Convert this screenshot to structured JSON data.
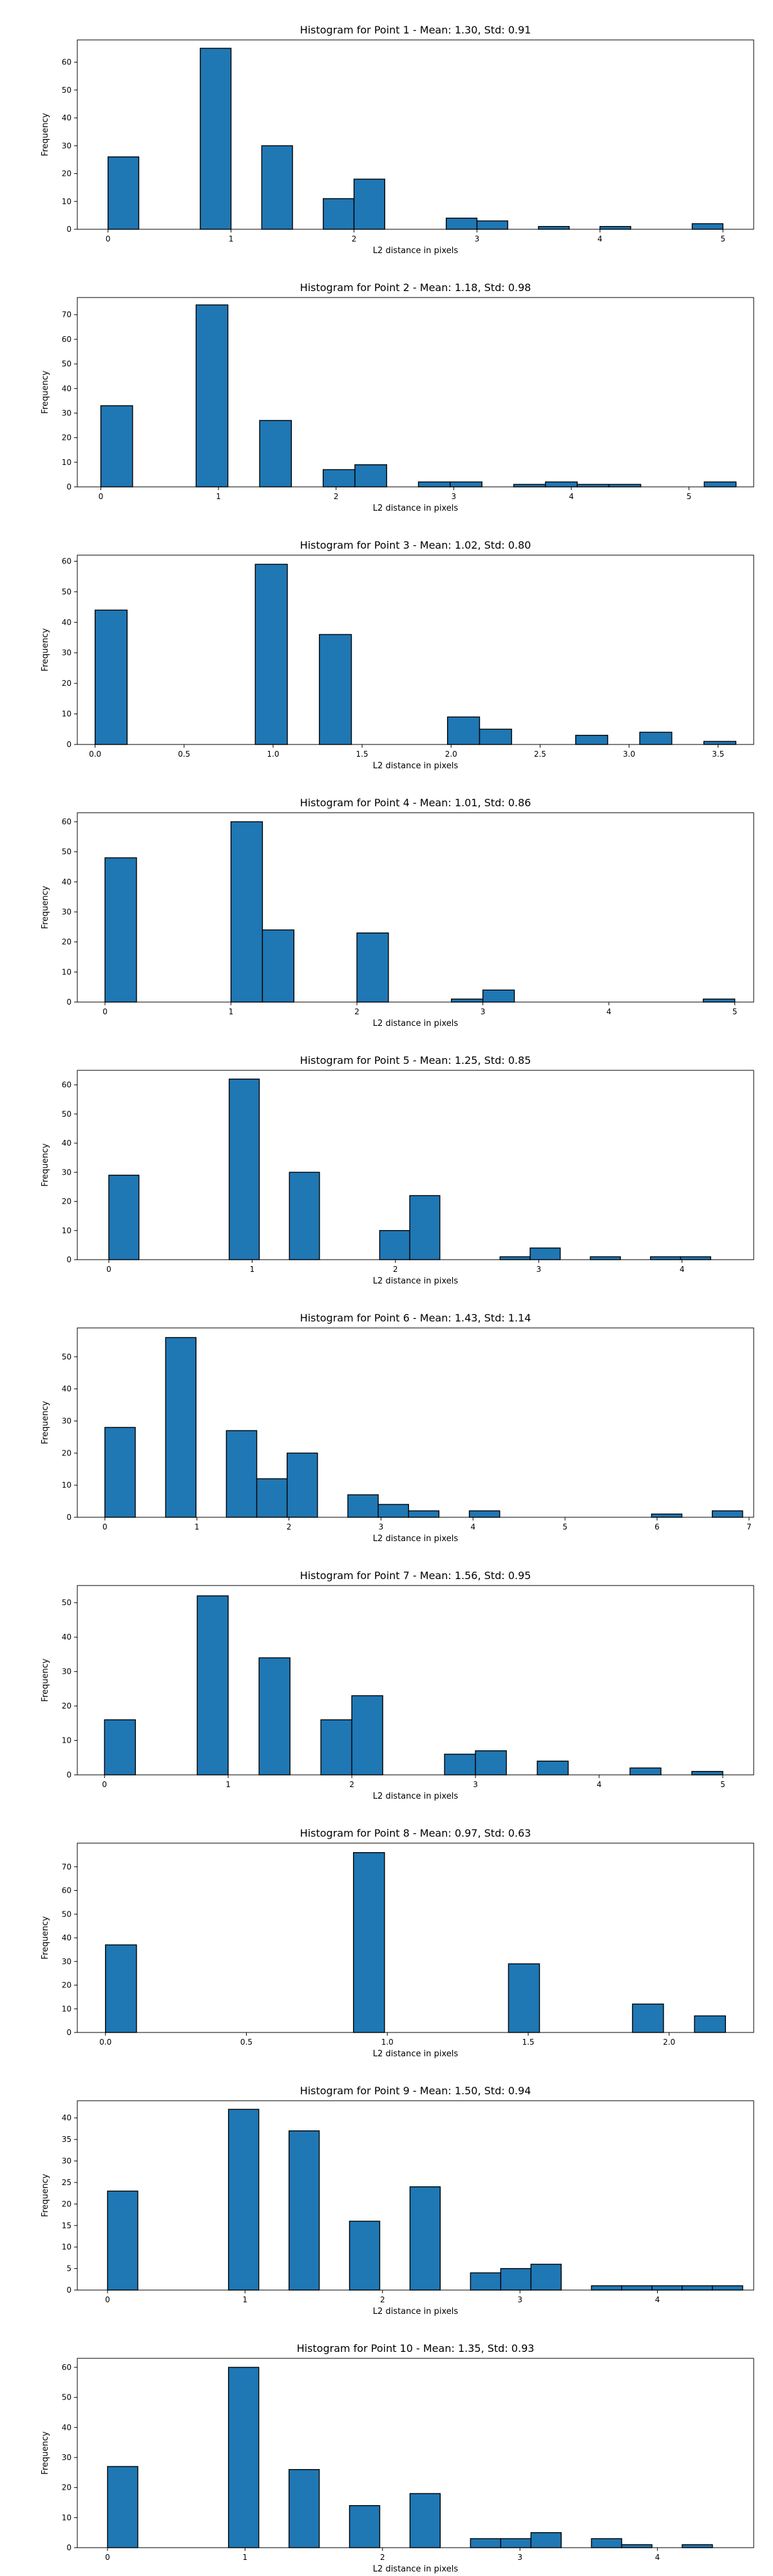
{
  "figure": {
    "background": "#ffffff",
    "bar_color": "#1f77b4",
    "edge_color": "#000000"
  },
  "chart_data": [
    {
      "type": "bar",
      "title": "Histogram for Point 1 - Mean: 1.30, Std: 0.91",
      "xlabel": "L2 distance in pixels",
      "ylabel": "Frequency",
      "xlim": [
        -0.25,
        5.25
      ],
      "ylim": [
        0,
        68
      ],
      "xticks": [
        0,
        1,
        2,
        3,
        4,
        5
      ],
      "yticks": [
        0,
        10,
        20,
        30,
        40,
        50,
        60
      ],
      "bin_width": 0.25,
      "x": [
        0,
        0.75,
        1.25,
        1.75,
        2,
        2.75,
        3,
        3.5,
        4,
        4.75
      ],
      "values": [
        26,
        65,
        30,
        11,
        18,
        4,
        3,
        1,
        1,
        2
      ]
    },
    {
      "type": "bar",
      "title": "Histogram for Point 2 - Mean: 1.18, Std: 0.98",
      "xlabel": "L2 distance in pixels",
      "ylabel": "Frequency",
      "xlim": [
        -0.2,
        5.55
      ],
      "ylim": [
        0,
        77
      ],
      "xticks": [
        0,
        1,
        2,
        3,
        4,
        5
      ],
      "yticks": [
        0,
        10,
        20,
        30,
        40,
        50,
        60,
        70
      ],
      "bin_width": 0.27,
      "x": [
        0,
        0.81,
        1.35,
        1.89,
        2.16,
        2.7,
        2.97,
        3.51,
        3.78,
        4.05,
        4.32,
        5.13
      ],
      "values": [
        33,
        74,
        27,
        7,
        9,
        2,
        2,
        1,
        2,
        1,
        1,
        2
      ]
    },
    {
      "type": "bar",
      "title": "Histogram for Point 3 - Mean: 1.02, Std: 0.80",
      "xlabel": "L2 distance in pixels",
      "ylabel": "Frequency",
      "xlim": [
        -0.1,
        3.7
      ],
      "ylim": [
        0,
        62
      ],
      "xticks": [
        0.0,
        0.5,
        1.0,
        1.5,
        2.0,
        2.5,
        3.0,
        3.5
      ],
      "yticks": [
        0,
        10,
        20,
        30,
        40,
        50,
        60
      ],
      "bin_width": 0.18,
      "x": [
        0,
        0.9,
        1.26,
        1.98,
        2.16,
        2.7,
        3.06,
        3.42
      ],
      "values": [
        44,
        59,
        36,
        9,
        5,
        3,
        4,
        1
      ]
    },
    {
      "type": "bar",
      "title": "Histogram for Point 4 - Mean: 1.01, Std: 0.86",
      "xlabel": "L2 distance in pixels",
      "ylabel": "Frequency",
      "xlim": [
        -0.22,
        5.15
      ],
      "ylim": [
        0,
        63
      ],
      "xticks": [
        0,
        1,
        2,
        3,
        4,
        5
      ],
      "yticks": [
        0,
        10,
        20,
        30,
        40,
        50,
        60
      ],
      "bin_width": 0.25,
      "x": [
        0,
        1,
        1.25,
        2,
        2.75,
        3,
        4.75
      ],
      "values": [
        48,
        60,
        24,
        23,
        1,
        4,
        1
      ]
    },
    {
      "type": "bar",
      "title": "Histogram for Point 5 - Mean: 1.25, Std: 0.85",
      "xlabel": "L2 distance in pixels",
      "ylabel": "Frequency",
      "xlim": [
        -0.22,
        4.5
      ],
      "ylim": [
        0,
        65
      ],
      "xticks": [
        0,
        1,
        2,
        3,
        4
      ],
      "yticks": [
        0,
        10,
        20,
        30,
        40,
        50,
        60
      ],
      "bin_width": 0.21,
      "x": [
        0,
        0.84,
        1.26,
        1.89,
        2.1,
        2.73,
        2.94,
        3.36,
        3.78,
        3.99
      ],
      "values": [
        29,
        62,
        30,
        10,
        22,
        1,
        4,
        1,
        1,
        1
      ]
    },
    {
      "type": "bar",
      "title": "Histogram for Point 6 - Mean: 1.43, Std: 1.14",
      "xlabel": "L2 distance in pixels",
      "ylabel": "Frequency",
      "xlim": [
        -0.3,
        7.05
      ],
      "ylim": [
        0,
        59
      ],
      "xticks": [
        0,
        1,
        2,
        3,
        4,
        5,
        6,
        7
      ],
      "yticks": [
        0,
        10,
        20,
        30,
        40,
        50
      ],
      "bin_width": 0.33,
      "x": [
        0,
        0.66,
        1.32,
        1.65,
        1.98,
        2.64,
        2.97,
        3.3,
        3.96,
        5.94,
        6.6
      ],
      "values": [
        28,
        56,
        27,
        12,
        20,
        7,
        4,
        2,
        2,
        1,
        2
      ]
    },
    {
      "type": "bar",
      "title": "Histogram for Point 7 - Mean: 1.56, Std: 0.95",
      "xlabel": "L2 distance in pixels",
      "ylabel": "Frequency",
      "xlim": [
        -0.22,
        5.25
      ],
      "ylim": [
        0,
        55
      ],
      "xticks": [
        0,
        1,
        2,
        3,
        4,
        5
      ],
      "yticks": [
        0,
        10,
        20,
        30,
        40,
        50
      ],
      "bin_width": 0.25,
      "x": [
        0,
        0.75,
        1.25,
        1.75,
        2,
        2.75,
        3,
        3.5,
        4.25,
        4.75
      ],
      "values": [
        16,
        52,
        34,
        16,
        23,
        6,
        7,
        4,
        2,
        1
      ]
    },
    {
      "type": "bar",
      "title": "Histogram for Point 8 - Mean: 0.97, Std: 0.63",
      "xlabel": "L2 distance in pixels",
      "ylabel": "Frequency",
      "xlim": [
        -0.1,
        2.3
      ],
      "ylim": [
        0,
        80
      ],
      "xticks": [
        0.0,
        0.5,
        1.0,
        1.5,
        2.0
      ],
      "yticks": [
        0,
        10,
        20,
        30,
        40,
        50,
        60,
        70
      ],
      "bin_width": 0.11,
      "x": [
        0,
        0.88,
        1.43,
        1.87,
        2.09
      ],
      "values": [
        37,
        76,
        29,
        12,
        7
      ]
    },
    {
      "type": "bar",
      "title": "Histogram for Point 9 - Mean: 1.50, Std: 0.94",
      "xlabel": "L2 distance in pixels",
      "ylabel": "Frequency",
      "xlim": [
        -0.22,
        4.7
      ],
      "ylim": [
        0,
        44
      ],
      "xticks": [
        0,
        1,
        2,
        3,
        4
      ],
      "yticks": [
        0,
        5,
        10,
        15,
        20,
        25,
        30,
        35,
        40
      ],
      "bin_width": 0.22,
      "x": [
        0,
        0.88,
        1.32,
        1.76,
        2.2,
        2.64,
        2.86,
        3.08,
        3.52,
        3.74,
        3.96,
        4.18,
        4.4
      ],
      "values": [
        23,
        42,
        37,
        16,
        24,
        4,
        5,
        6,
        1,
        1,
        1,
        1,
        1
      ]
    },
    {
      "type": "bar",
      "title": "Histogram for Point 10 - Mean: 1.35, Std: 0.93",
      "xlabel": "L2 distance in pixels",
      "ylabel": "Frequency",
      "xlim": [
        -0.22,
        4.7
      ],
      "ylim": [
        0,
        63
      ],
      "xticks": [
        0,
        1,
        2,
        3,
        4
      ],
      "yticks": [
        0,
        10,
        20,
        30,
        40,
        50,
        60
      ],
      "bin_width": 0.22,
      "x": [
        0,
        0.88,
        1.32,
        1.76,
        2.2,
        2.64,
        2.86,
        3.08,
        3.52,
        3.74,
        4.18
      ],
      "values": [
        27,
        60,
        26,
        14,
        18,
        3,
        3,
        5,
        3,
        1,
        1
      ]
    }
  ]
}
